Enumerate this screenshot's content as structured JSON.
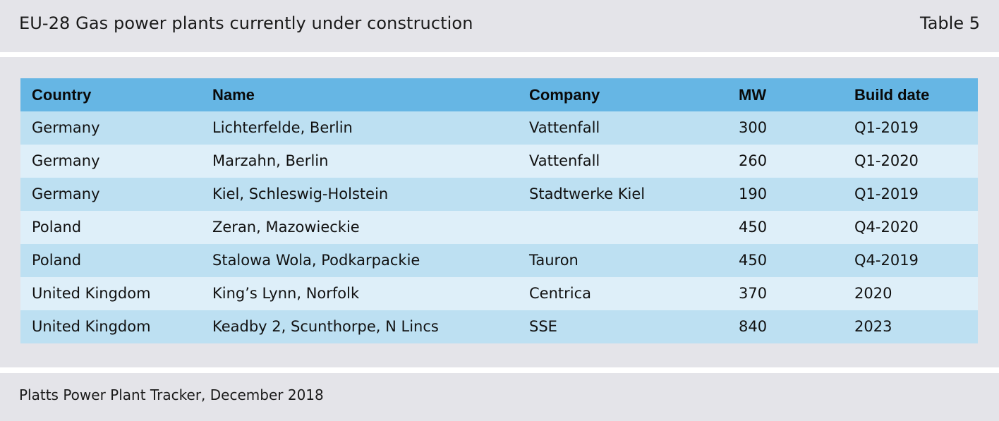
{
  "header": {
    "title": "EU-28 Gas power plants currently under construction",
    "table_label": "Table 5"
  },
  "table": {
    "columns": [
      "Country",
      "Name",
      "Company",
      "MW",
      "Build date"
    ],
    "rows": [
      [
        "Germany",
        "Lichterfelde, Berlin",
        "Vattenfall",
        "300",
        "Q1-2019"
      ],
      [
        "Germany",
        "Marzahn, Berlin",
        "Vattenfall",
        "260",
        "Q1-2020"
      ],
      [
        "Germany",
        "Kiel, Schleswig-Holstein",
        "Stadtwerke Kiel",
        "190",
        "Q1-2019"
      ],
      [
        "Poland",
        "Zeran, Mazowieckie",
        "",
        "450",
        "Q4-2020"
      ],
      [
        "Poland",
        "Stalowa Wola, Podkarpackie",
        "Tauron",
        "450",
        "Q4-2019"
      ],
      [
        "United Kingdom",
        "King’s Lynn, Norfolk",
        "Centrica",
        "370",
        "2020"
      ],
      [
        "United Kingdom",
        "Keadby 2, Scunthorpe, N Lincs",
        "SSE",
        "840",
        "2023"
      ]
    ]
  },
  "footer": {
    "source": "Platts Power Plant Tracker, December 2018"
  },
  "colors": {
    "panel_background": "#e4e4e9",
    "header_row": "#66b6e4",
    "row_odd": "#bde0f2",
    "row_even": "#deeff9"
  }
}
